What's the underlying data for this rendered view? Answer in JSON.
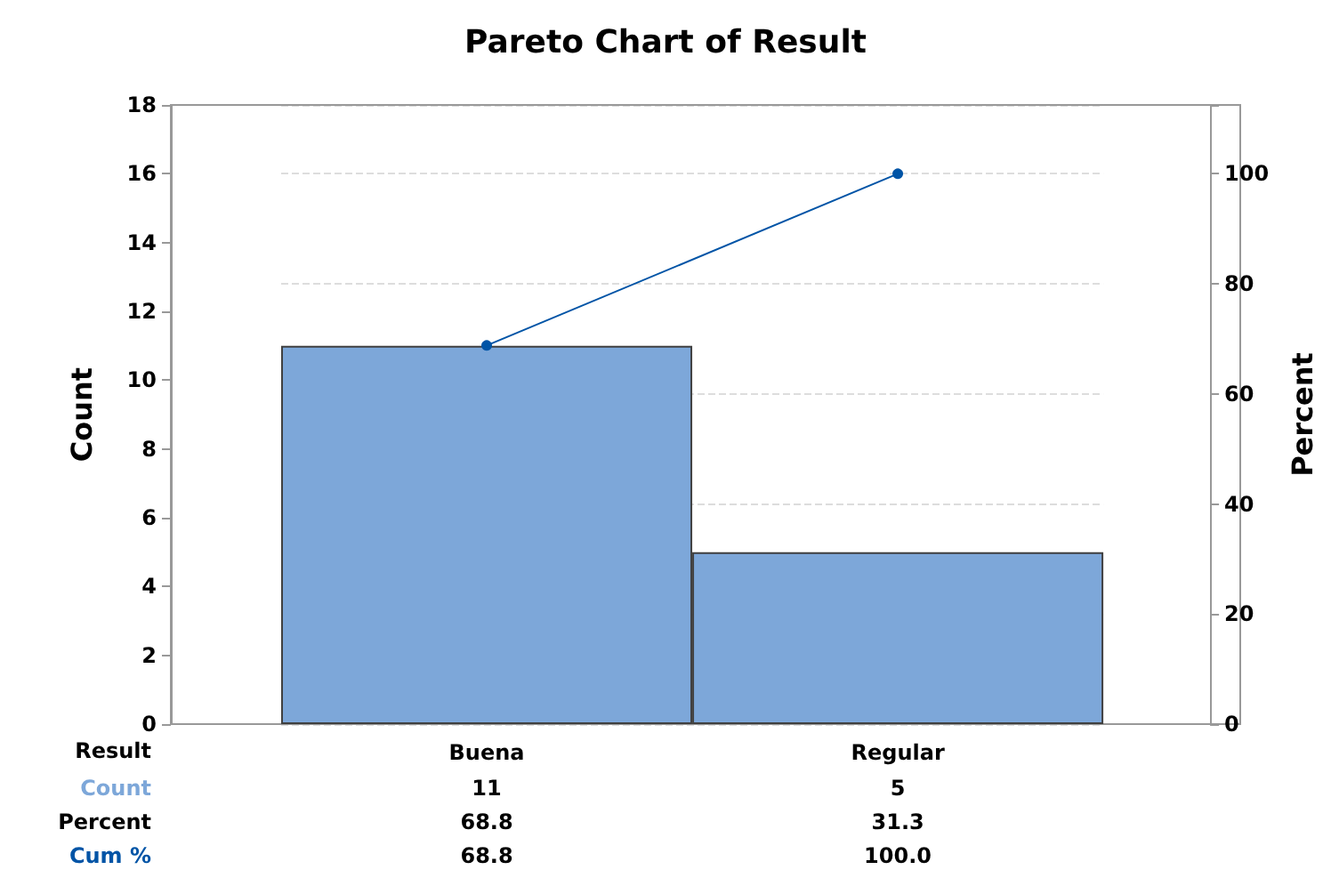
{
  "chart_data": {
    "type": "bar",
    "title": "Pareto Chart of Result",
    "xlabel": "Result",
    "ylabel": "Count",
    "y2label": "Percent",
    "categories": [
      "Buena",
      "Regular"
    ],
    "series": [
      {
        "name": "Count",
        "color": "#7da7d9",
        "values": [
          11,
          5
        ],
        "value_labels": [
          "11",
          "5"
        ]
      },
      {
        "name": "Cum %",
        "type": "line",
        "axis": "y2",
        "color": "#0054a6",
        "values": [
          68.8,
          100
        ],
        "value_labels": [
          "68.8",
          "100.0"
        ]
      }
    ],
    "annotations": [
      "Percent",
      "68.8",
      "31.3"
    ],
    "ylim": [
      0,
      18
    ],
    "yticks": [
      0,
      2,
      4,
      6,
      8,
      10,
      12,
      14,
      16,
      18
    ],
    "y2lim": [
      0,
      112.5
    ],
    "y2ticks": [
      0,
      20,
      40,
      60,
      80,
      100
    ],
    "grid": "y2",
    "marker": "circle",
    "line_style": "solid",
    "legend": false
  }
}
